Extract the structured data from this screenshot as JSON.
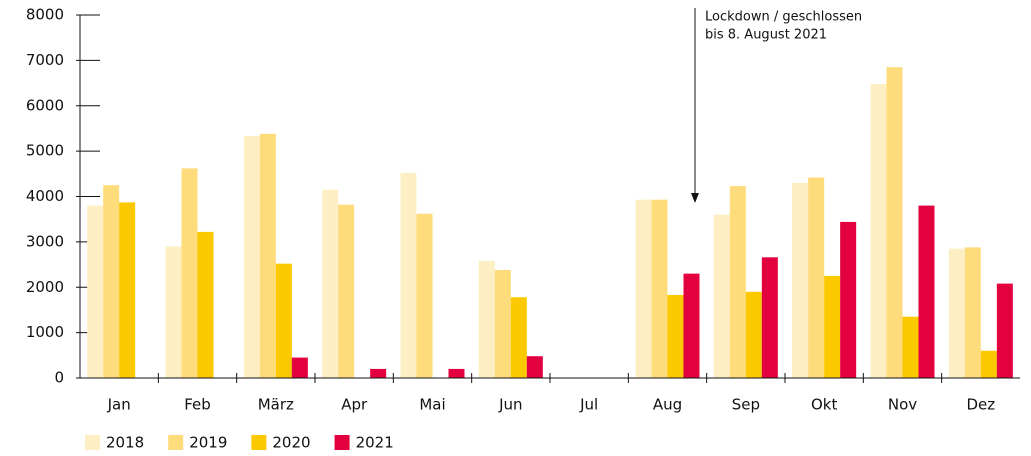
{
  "chart_data": {
    "type": "bar",
    "annotation": [
      "Lockdown / geschlossen",
      "bis 8. August 2021"
    ],
    "categories": [
      "Jan",
      "Feb",
      "März",
      "Apr",
      "Mai",
      "Jun",
      "Jul",
      "Aug",
      "Sep",
      "Okt",
      "Nov",
      "Dez"
    ],
    "series": [
      {
        "name": "2018",
        "color": "#fdefc3",
        "values": [
          3800,
          2900,
          5330,
          4150,
          4520,
          2580,
          null,
          3930,
          3600,
          4300,
          6480,
          2850
        ]
      },
      {
        "name": "2019",
        "color": "#fedc7c",
        "values": [
          4250,
          4620,
          5380,
          3820,
          3620,
          2380,
          null,
          3930,
          4230,
          4420,
          6850,
          2880
        ]
      },
      {
        "name": "2020",
        "color": "#fcc800",
        "values": [
          3870,
          3220,
          2520,
          null,
          null,
          1780,
          null,
          1830,
          1900,
          2250,
          1350,
          600
        ]
      },
      {
        "name": "2021",
        "color": "#e2003f",
        "values": [
          null,
          null,
          450,
          200,
          200,
          480,
          null,
          2300,
          2660,
          3440,
          3800,
          2080
        ]
      }
    ],
    "ylim": [
      0,
      8000
    ],
    "yticks": [
      0,
      1000,
      2000,
      3000,
      4000,
      5000,
      6000,
      7000,
      8000
    ],
    "legend": "bottom-left"
  }
}
